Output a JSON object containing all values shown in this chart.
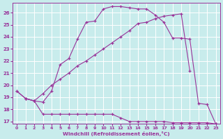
{
  "xlabel": "Windchill (Refroidissement éolien,°C)",
  "background_color": "#c8ecec",
  "line_color": "#993399",
  "grid_color": "#ffffff",
  "xlim": [
    -0.5,
    23.5
  ],
  "ylim": [
    16.8,
    26.8
  ],
  "yticks": [
    17,
    18,
    19,
    20,
    21,
    22,
    23,
    24,
    25,
    26
  ],
  "xticks": [
    0,
    1,
    2,
    3,
    4,
    5,
    6,
    7,
    8,
    9,
    10,
    11,
    12,
    13,
    14,
    15,
    16,
    17,
    18,
    19,
    20,
    21,
    22,
    23
  ],
  "line1_x": [
    0,
    1,
    2,
    3,
    4,
    5,
    6,
    7,
    8,
    9,
    10,
    11,
    12,
    13,
    14,
    15,
    16,
    17,
    18,
    19,
    20,
    21,
    22,
    23
  ],
  "line1_y": [
    19.5,
    18.9,
    18.7,
    17.6,
    17.6,
    17.6,
    17.6,
    17.6,
    17.6,
    17.6,
    17.6,
    17.6,
    17.3,
    17.0,
    17.0,
    17.0,
    17.0,
    17.0,
    16.9,
    16.9,
    16.9,
    16.9,
    16.9,
    16.8
  ],
  "line2_x": [
    0,
    1,
    2,
    3,
    4,
    5,
    6,
    7,
    8,
    9,
    10,
    11,
    12,
    13,
    14,
    15,
    16,
    17,
    18,
    19,
    20
  ],
  "line2_y": [
    19.5,
    18.9,
    18.7,
    19.3,
    20.0,
    20.5,
    21.0,
    21.6,
    22.0,
    22.5,
    23.0,
    23.5,
    24.0,
    24.5,
    25.1,
    25.2,
    25.5,
    25.7,
    25.8,
    25.9,
    21.2
  ],
  "line3_x": [
    1,
    2,
    3,
    4,
    5,
    6,
    7,
    8,
    9,
    10,
    11,
    12,
    13,
    14,
    15,
    16,
    17,
    18,
    19,
    20,
    21,
    22,
    23
  ],
  "line3_y": [
    18.9,
    18.7,
    18.6,
    19.5,
    21.7,
    22.2,
    23.8,
    25.2,
    25.3,
    26.3,
    26.5,
    26.5,
    26.4,
    26.3,
    26.3,
    25.8,
    25.2,
    23.9,
    23.9,
    23.8,
    18.5,
    18.4,
    16.8
  ]
}
